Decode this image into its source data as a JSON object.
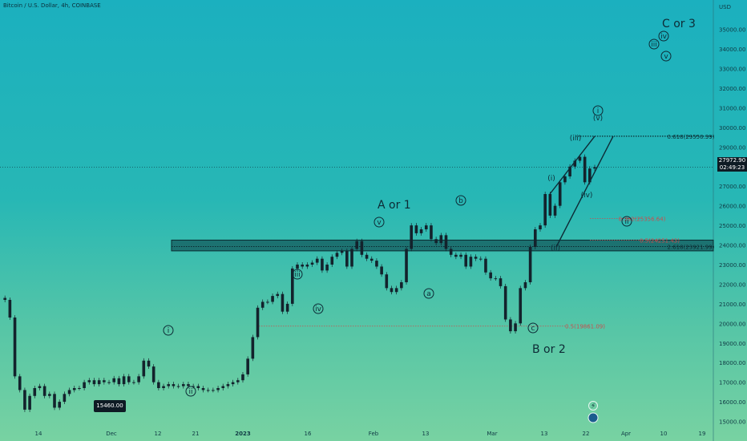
{
  "title": "Bitcoin / U.S. Dollar, 4h, COINBASE",
  "currency": "USD",
  "colors": {
    "candle": "#13222c",
    "zone": "#145a5c",
    "fib_dark": "#0b2a30",
    "fib_red": "#c84e4e"
  },
  "current_price": "27972.90",
  "countdown": "02:49:23",
  "low_label": "15460.00",
  "fibs": [
    {
      "price": 29550.39,
      "label": "0.618(29550.39)"
    },
    {
      "price": 25356.64,
      "label": "0.382(25356.64)"
    },
    {
      "price": 24251.43,
      "label": "0.5(24251.43)"
    },
    {
      "price": 23921.99,
      "label": "2.618(23921.99)"
    },
    {
      "price": 19861.09,
      "label": "0.5(19861.09)"
    }
  ],
  "wave_labels": {
    "a_or_1": "A or 1",
    "b_or_2": "B or 2",
    "c_or_3": "C or 3"
  },
  "circled_labels": [
    "i",
    "ii",
    "iii",
    "iv",
    "v",
    "a",
    "b",
    "c",
    "ii",
    "i",
    "iii",
    "iv",
    "v"
  ],
  "plain_labels": [
    "(i)",
    "(ii)",
    "(iii)",
    "(iv)",
    "(v)"
  ],
  "chart_data": {
    "type": "line",
    "title": "Bitcoin / U.S. Dollar, 4h, COINBASE",
    "ylim": [
      14000,
      36500
    ],
    "y_ticks": [
      15000,
      16000,
      17000,
      18000,
      19000,
      20000,
      21000,
      22000,
      23000,
      24000,
      25000,
      26000,
      27000,
      28000,
      29000,
      30000,
      31000,
      32000,
      33000,
      34000,
      35000
    ],
    "x_ticks": [
      "14",
      "Dec",
      "12",
      "21",
      "2023",
      "16",
      "Feb",
      "13",
      "Mar",
      "13",
      "22",
      "Apr",
      "10",
      "19"
    ],
    "series": [
      {
        "values": [
          21300,
          21200,
          20300,
          17300,
          16600,
          15600,
          16300,
          16700,
          16800,
          16300,
          16400,
          15700,
          16000,
          16400,
          16600,
          16700,
          16700,
          17000,
          17100,
          16900,
          17100,
          17000,
          17000,
          17200,
          16900,
          17300,
          17000,
          17000,
          17300,
          18100,
          17800,
          17000,
          16700,
          16800,
          16900,
          16800,
          16800,
          16900,
          16800,
          16800,
          16700,
          16600,
          16600,
          16600,
          16700,
          16800,
          16900,
          17000,
          17100,
          17400,
          18200,
          19300,
          20800,
          21100,
          21100,
          21400,
          21500,
          20600,
          21000,
          22800,
          23000,
          22900,
          23000,
          23100,
          23300,
          22700,
          23000,
          23400,
          23600,
          23700,
          22900,
          23800,
          24200,
          23500,
          23300,
          23200,
          22900,
          22500,
          21800,
          21600,
          21800,
          22100,
          23800,
          25000,
          24600,
          24800,
          25000,
          24300,
          24100,
          24500,
          23800,
          23500,
          23400,
          23500,
          22900,
          23400,
          23300,
          23300,
          22600,
          22300,
          22300,
          21900,
          20200,
          19600,
          20000,
          21800,
          22100,
          23900,
          24800,
          25000,
          26600,
          25500,
          26000,
          27200,
          27500,
          28000,
          28300,
          28500,
          27200,
          27900,
          27972.9
        ]
      }
    ]
  }
}
